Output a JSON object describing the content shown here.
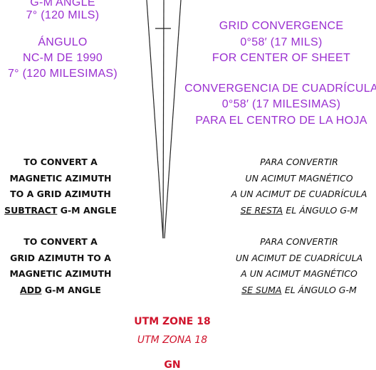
{
  "left_purple": [
    "G-M ANGLE",
    "7° (120 MILS)",
    "ÁNGULO",
    "NC-M DE 1990",
    "7° (120 MILESIMAS)"
  ],
  "right_purple": [
    "GRID CONVERGENCE",
    "0°58′ (17 MILS)",
    "FOR CENTER OF SHEET",
    "CONVERGENCIA DE CUADRÍCULA",
    "0°58′ (17 MILESIMAS)",
    "PARA EL CENTRO DE LA HOJA"
  ],
  "left_notes": [
    {
      "lines": [
        "TO CONVERT A",
        "MAGNETIC AZIMUTH",
        "TO A GRID AZIMUTH"
      ],
      "underlined": "SUBTRACT",
      "rest": "G-M ANGLE"
    },
    {
      "lines": [
        "TO CONVERT A",
        "GRID AZIMUTH TO A",
        "MAGNETIC AZIMUTH"
      ],
      "underlined": "ADD",
      "rest": "G-M ANGLE"
    }
  ],
  "right_notes": [
    {
      "lines": [
        "PARA CONVERTIR",
        "UN ACIMUT MAGNÉTICO",
        "A UN ACIMUT DE CUADRÍCULA"
      ],
      "underlined": "SE RESTA",
      "rest": "EL ÁNGULO G-M"
    },
    {
      "lines": [
        "PARA CONVERTIR",
        "UN ACIMUT DE CUADRÍCULA",
        "A UN ACIMUT MAGNÉTICO"
      ],
      "underlined": "SE SUMA",
      "rest": "EL ÁNGULO G-M"
    }
  ],
  "zone": "UTM ZONE 18",
  "zona": "UTM ZONA 18",
  "gn": "GN"
}
